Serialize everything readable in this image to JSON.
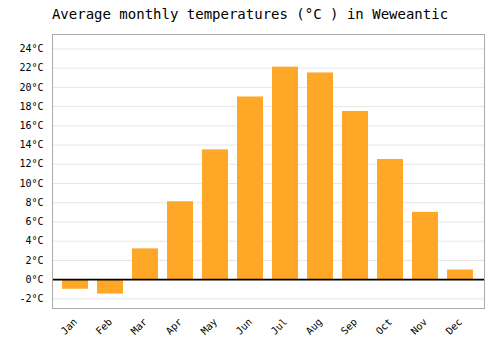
{
  "chart_data": {
    "type": "bar",
    "title": "Average monthly temperatures (°C ) in Weweantic",
    "categories": [
      "Jan",
      "Feb",
      "Mar",
      "Apr",
      "May",
      "Jun",
      "Jul",
      "Aug",
      "Sep",
      "Oct",
      "Nov",
      "Dec"
    ],
    "values": [
      -1.0,
      -1.5,
      3.2,
      8.1,
      13.5,
      19.0,
      22.1,
      21.5,
      17.5,
      12.5,
      7.0,
      1.0
    ],
    "color": "#FFA726",
    "ylim": [
      -3,
      25.5
    ],
    "yticks": [
      {
        "value": -2,
        "label": "-2°C"
      },
      {
        "value": 0,
        "label": "0°C"
      },
      {
        "value": 2,
        "label": "2°C"
      },
      {
        "value": 4,
        "label": "4°C"
      },
      {
        "value": 6,
        "label": "6°C"
      },
      {
        "value": 8,
        "label": "8°C"
      },
      {
        "value": 10,
        "label": "10°C"
      },
      {
        "value": 12,
        "label": "12°C"
      },
      {
        "value": 14,
        "label": "14°C"
      },
      {
        "value": 16,
        "label": "16°C"
      },
      {
        "value": 18,
        "label": "18°C"
      },
      {
        "value": 20,
        "label": "20°C"
      },
      {
        "value": 22,
        "label": "22°C"
      },
      {
        "value": 24,
        "label": "24°C"
      }
    ],
    "grid": true
  }
}
